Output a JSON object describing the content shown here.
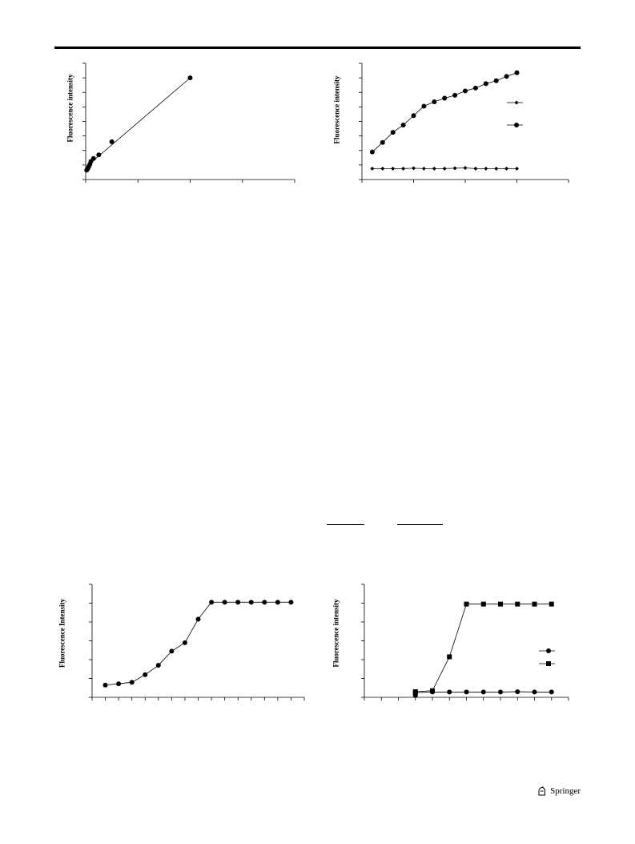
{
  "publisher": {
    "name": "Springer",
    "logo_icon": "springer-horse-icon"
  },
  "chart_data": [
    {
      "type": "scatter",
      "title": "",
      "ylabel": "Fluorescence intensity",
      "xlabel": "",
      "xlim": [
        0,
        4
      ],
      "ylim": [
        0,
        8
      ],
      "xticks": [
        0,
        1,
        2,
        3,
        4
      ],
      "yticks": [
        0,
        1,
        2,
        3,
        4,
        5,
        6,
        7,
        8
      ],
      "grid": false,
      "series": [
        {
          "marker": "circle",
          "x": [
            0.02,
            0.04,
            0.06,
            0.08,
            0.1,
            0.15,
            0.25,
            0.5,
            2.0
          ],
          "y": [
            0.65,
            0.75,
            0.9,
            1.05,
            1.25,
            1.45,
            1.7,
            2.6,
            7.0
          ]
        }
      ],
      "fit_line": {
        "x": [
          0,
          2.0
        ],
        "y": [
          0.85,
          7.0
        ]
      }
    },
    {
      "type": "line",
      "title": "",
      "ylabel": "Fluorescence intensity",
      "xlabel": "",
      "xlim": [
        0,
        20
      ],
      "ylim": [
        0,
        8
      ],
      "xticks": [
        0,
        5,
        10,
        15,
        20
      ],
      "yticks": [
        0,
        1,
        2,
        3,
        4,
        5,
        6,
        7,
        8
      ],
      "grid": false,
      "legend": "right",
      "x": [
        1,
        2,
        3,
        4,
        5,
        6,
        7,
        8,
        9,
        10,
        11,
        12,
        13,
        14,
        15
      ],
      "series": [
        {
          "marker": "diamond",
          "values": [
            0.75,
            0.75,
            0.75,
            0.75,
            0.78,
            0.75,
            0.75,
            0.75,
            0.78,
            0.8,
            0.75,
            0.75,
            0.75,
            0.75,
            0.75
          ]
        },
        {
          "marker": "circle",
          "values": [
            1.9,
            2.55,
            3.25,
            3.75,
            4.4,
            5.05,
            5.35,
            5.6,
            5.8,
            6.1,
            6.3,
            6.6,
            6.8,
            7.1,
            7.35
          ]
        }
      ]
    },
    {
      "type": "line",
      "title": "",
      "ylabel": "Fluorescence Intensity",
      "xlabel": "",
      "xlim": [
        0,
        16
      ],
      "ylim": [
        0,
        6
      ],
      "xticks": [
        0,
        1,
        2,
        3,
        4,
        5,
        6,
        7,
        8,
        9,
        10,
        11,
        12,
        13,
        14,
        15,
        16
      ],
      "yticks": [
        0,
        1,
        2,
        3,
        4,
        5,
        6
      ],
      "grid": false,
      "x": [
        1,
        2,
        3,
        4,
        5,
        6,
        7,
        8,
        9,
        10,
        11,
        12,
        13,
        14,
        15
      ],
      "series": [
        {
          "marker": "circle",
          "values": [
            0.65,
            0.72,
            0.8,
            1.2,
            1.7,
            2.45,
            2.9,
            4.15,
            5.05,
            5.05,
            5.05,
            5.05,
            5.05,
            5.05,
            5.05
          ]
        }
      ]
    },
    {
      "type": "line",
      "title": "",
      "ylabel": "Fluorescence intensity",
      "xlabel": "",
      "xlim": [
        0,
        12
      ],
      "ylim": [
        0,
        6
      ],
      "xticks": [
        0,
        1,
        2,
        3,
        4,
        5,
        6,
        7,
        8,
        9,
        10,
        11,
        12
      ],
      "yticks": [
        0,
        1,
        2,
        3,
        4,
        5,
        6
      ],
      "grid": false,
      "legend": "right",
      "x": [
        3,
        3,
        4,
        5,
        6,
        7,
        8,
        9,
        10,
        11
      ],
      "series": [
        {
          "marker": "circle",
          "values": [
            0.1,
            0.25,
            0.28,
            0.28,
            0.28,
            0.28,
            0.28,
            0.3,
            0.28,
            0.28
          ]
        },
        {
          "marker": "square",
          "values": [
            0.22,
            0.3,
            0.35,
            2.15,
            4.95,
            4.95,
            4.95,
            4.95,
            4.95,
            4.95
          ]
        }
      ]
    }
  ]
}
